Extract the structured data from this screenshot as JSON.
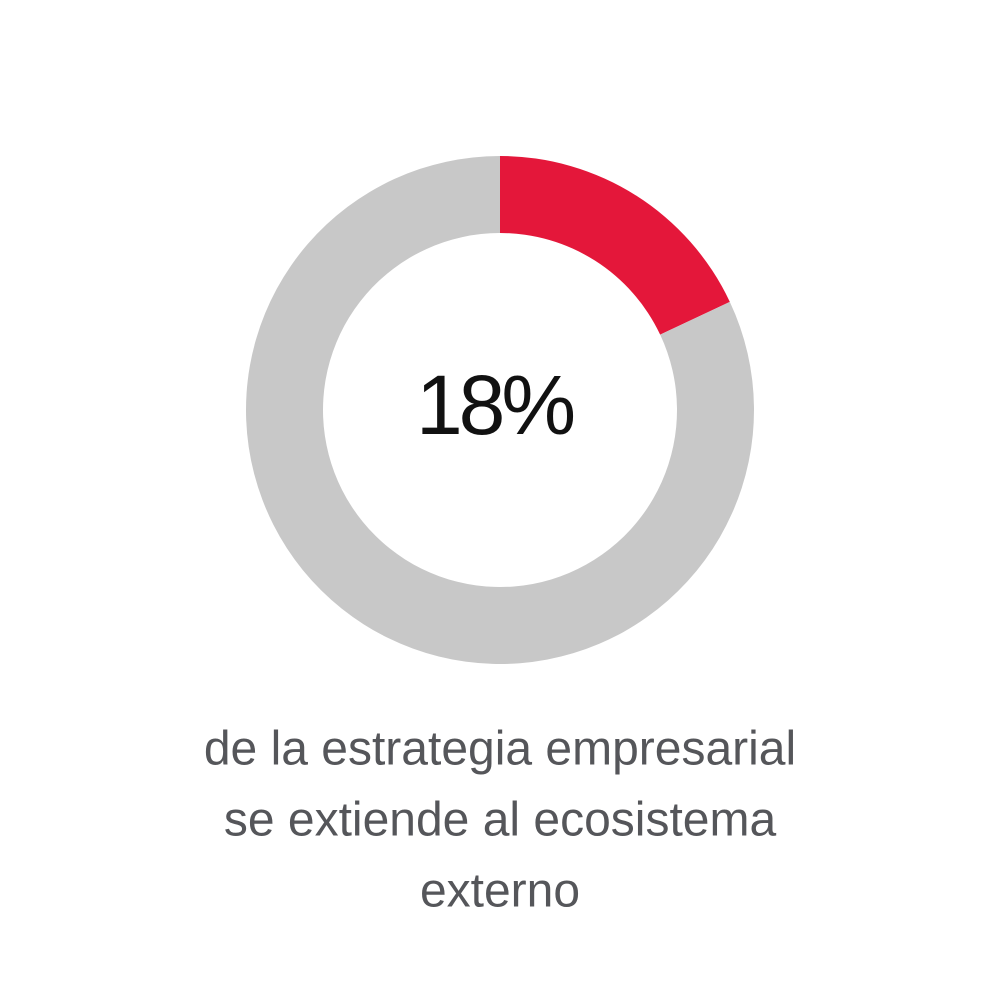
{
  "chart_data": {
    "type": "donut",
    "values": [
      18,
      82
    ],
    "value_labels": [
      "18%",
      null
    ],
    "colors": [
      "#e4173a",
      "#c8c8c8"
    ],
    "caption": [
      "de la estrategia empresarial",
      "se extiende al ecosistema",
      "externo"
    ]
  }
}
